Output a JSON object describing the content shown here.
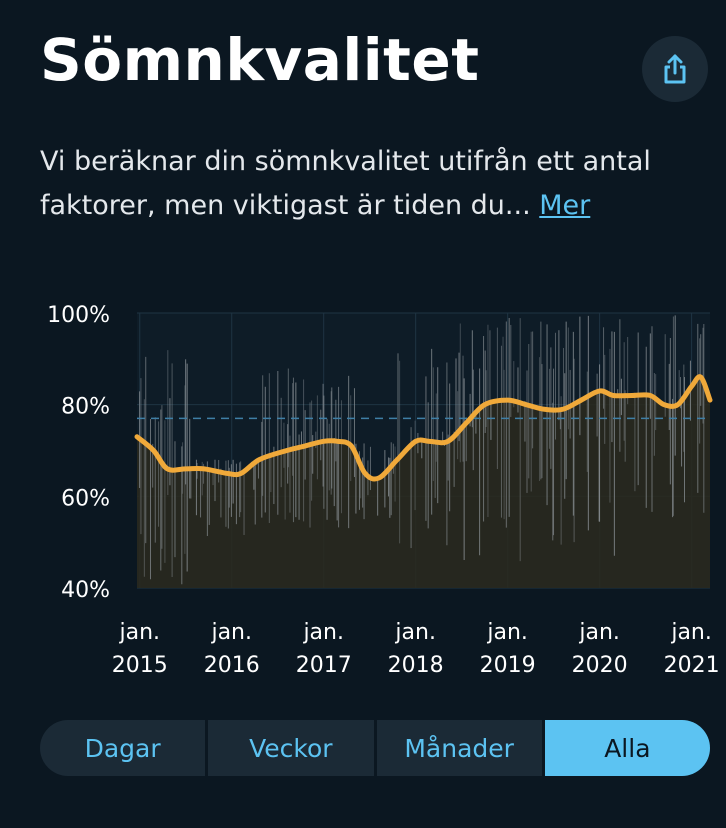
{
  "header": {
    "title": "Sömnkvalitet",
    "share_icon": "share-icon"
  },
  "description": {
    "text": "Vi beräknar din sömnkvalitet utifrån ett antal faktorer, men viktigast är tiden du...",
    "more_label": "Mer"
  },
  "colors": {
    "accent": "#5cc3f2",
    "trend": "#f0a93a",
    "background": "#0b1721",
    "bars": "#8f969b",
    "fill": "#29291f"
  },
  "chart_data": {
    "type": "area",
    "ylim": [
      40,
      100
    ],
    "y_ticks": [
      "40%",
      "60%",
      "80%",
      "100%"
    ],
    "x_ticks": [
      {
        "line1": "jan.",
        "line2": "2015",
        "x": 2015.0
      },
      {
        "line1": "jan.",
        "line2": "2016",
        "x": 2016.0
      },
      {
        "line1": "jan.",
        "line2": "2017",
        "x": 2017.0
      },
      {
        "line1": "jan.",
        "line2": "2018",
        "x": 2018.0
      },
      {
        "line1": "jan.",
        "line2": "2019",
        "x": 2019.0
      },
      {
        "line1": "jan.",
        "line2": "2020",
        "x": 2020.0
      },
      {
        "line1": "jan.",
        "line2": "2021",
        "x": 2021.0
      }
    ],
    "xlim": [
      2014.97,
      2021.2
    ],
    "reference_line": 77,
    "trend": {
      "x": [
        2014.97,
        2015.15,
        2015.3,
        2015.5,
        2015.7,
        2015.95,
        2016.1,
        2016.3,
        2016.6,
        2016.8,
        2017.0,
        2017.15,
        2017.3,
        2017.45,
        2017.6,
        2017.8,
        2018.0,
        2018.15,
        2018.35,
        2018.55,
        2018.75,
        2019.0,
        2019.2,
        2019.4,
        2019.6,
        2019.8,
        2020.0,
        2020.15,
        2020.35,
        2020.55,
        2020.7,
        2020.85,
        2021.0,
        2021.1,
        2021.2
      ],
      "y": [
        73,
        70,
        66,
        66,
        66,
        65,
        65,
        68,
        70,
        71,
        72,
        72,
        71,
        65,
        64,
        68,
        72,
        72,
        72,
        76,
        80,
        81,
        80,
        79,
        79,
        81,
        83,
        82,
        82,
        82,
        80,
        80,
        84,
        86,
        81
      ]
    },
    "daily_data_note": "",
    "bar_regions": [
      {
        "from": 2014.97,
        "to": 2015.55,
        "low": 40,
        "high": 92
      },
      {
        "from": 2015.55,
        "to": 2016.3,
        "low": 50,
        "high": 68
      },
      {
        "from": 2016.3,
        "to": 2017.35,
        "low": 52,
        "high": 88
      },
      {
        "from": 2017.35,
        "to": 2017.8,
        "low": 55,
        "high": 72
      },
      {
        "from": 2017.8,
        "to": 2018.45,
        "low": 48,
        "high": 93
      },
      {
        "from": 2018.45,
        "to": 2021.2,
        "low": 45,
        "high": 100
      }
    ]
  },
  "segments": [
    {
      "label": "Dagar",
      "active": false
    },
    {
      "label": "Veckor",
      "active": false
    },
    {
      "label": "Månader",
      "active": false
    },
    {
      "label": "Alla",
      "active": true
    }
  ]
}
